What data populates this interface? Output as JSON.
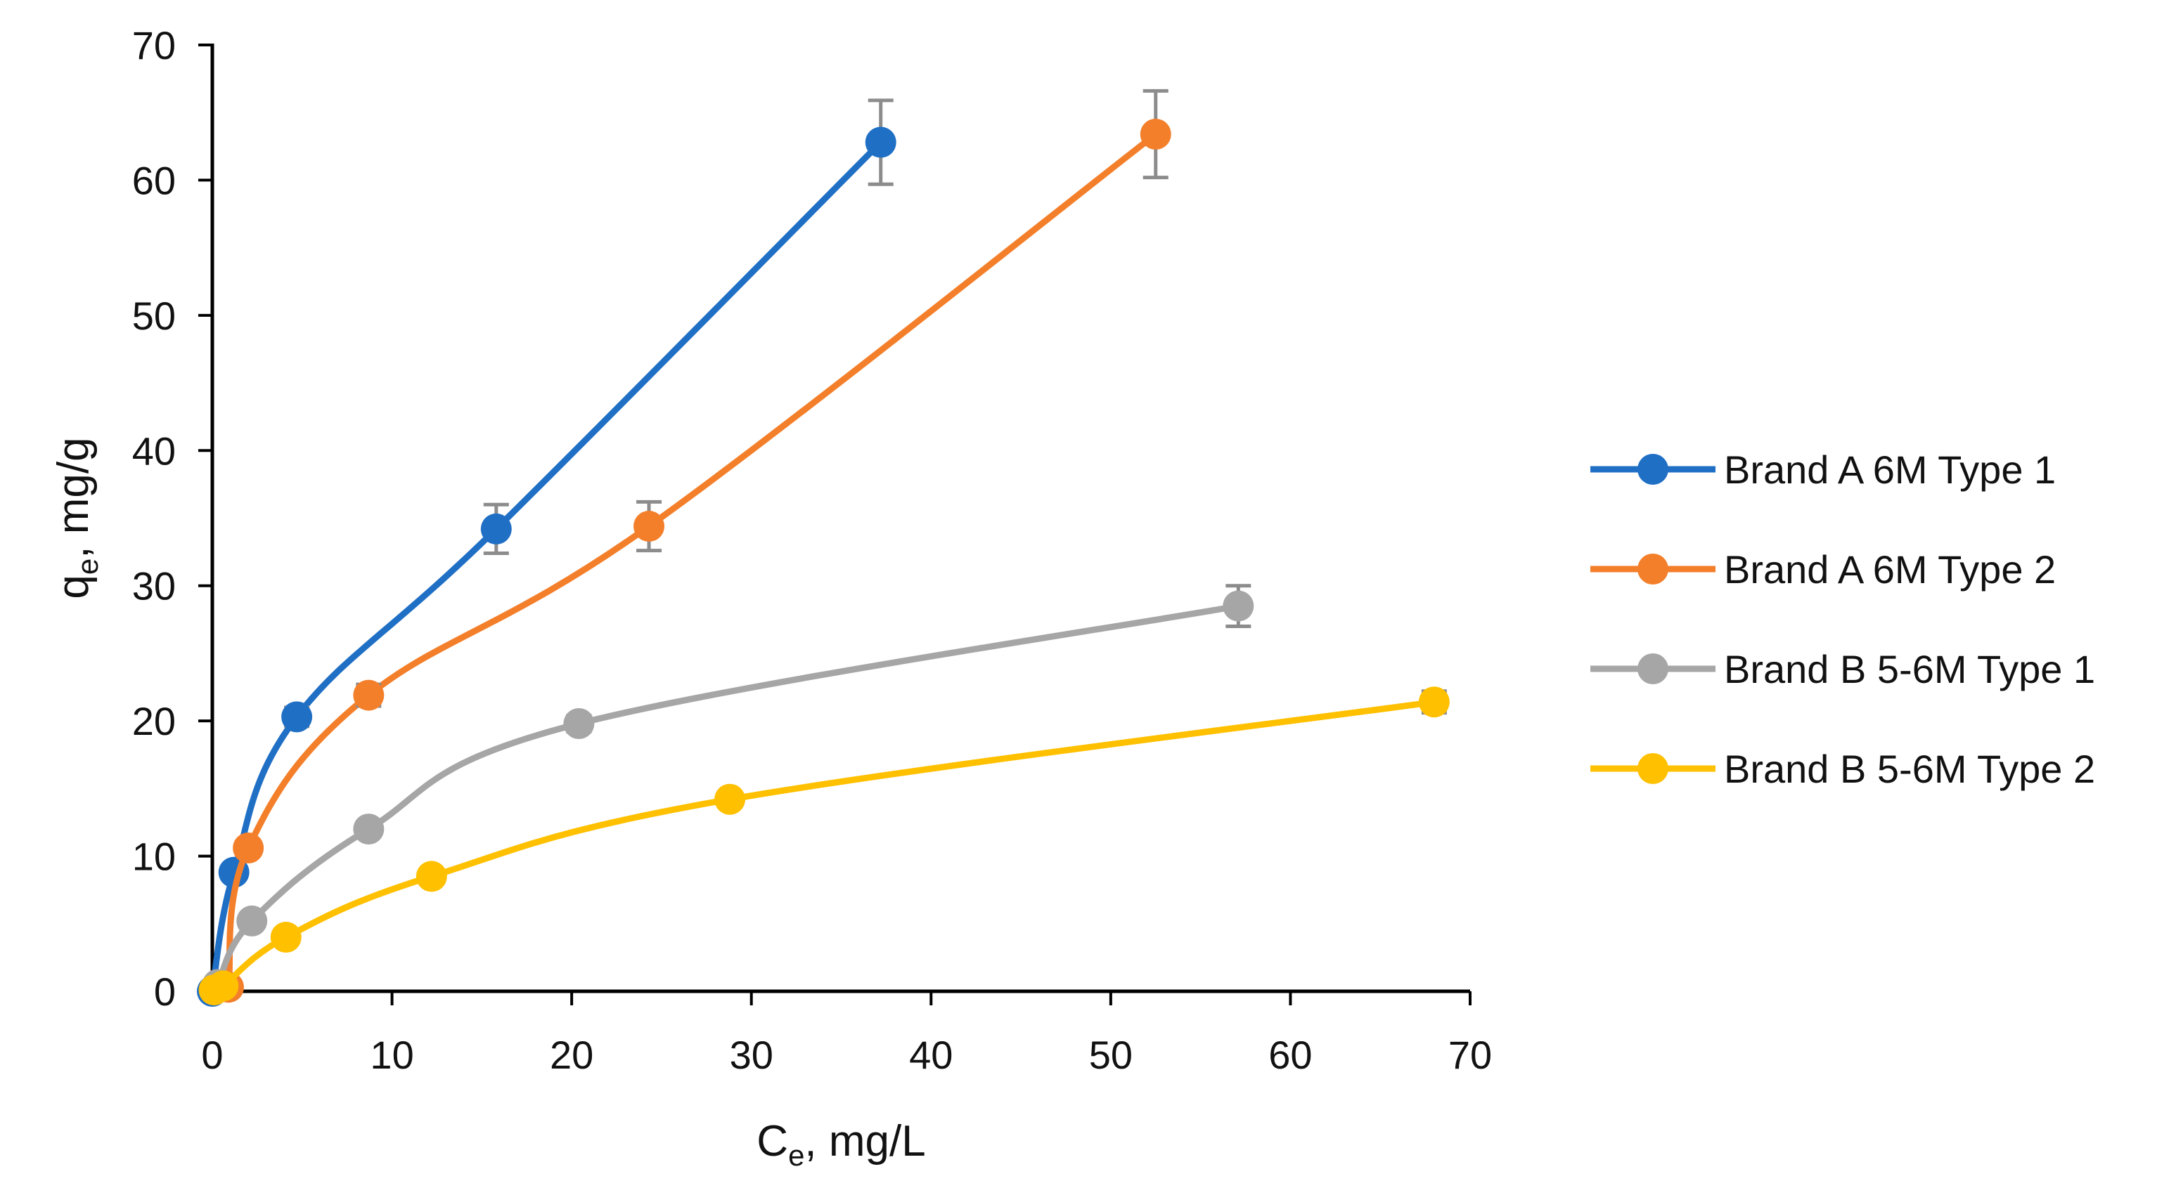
{
  "chart_data": {
    "type": "scatter",
    "title": "",
    "xlabel": {
      "main": "C",
      "sub": "e",
      "rest": ", mg/L"
    },
    "ylabel": {
      "main": "q",
      "sub": "e",
      "rest": ", mg/g"
    },
    "xlim": [
      0,
      70
    ],
    "ylim": [
      0,
      70
    ],
    "xticks": [
      0,
      10,
      20,
      30,
      40,
      50,
      60,
      70
    ],
    "yticks": [
      0,
      10,
      20,
      30,
      40,
      50,
      60,
      70
    ],
    "grid": false,
    "legend_position": "right",
    "series": [
      {
        "name": "Brand A 6M Type 1",
        "color": "#1f6fc5",
        "x": [
          0,
          1.2,
          4.7,
          15.8,
          37.2
        ],
        "y": [
          0,
          8.8,
          20.3,
          34.2,
          62.8
        ],
        "err": [
          0,
          0,
          0.7,
          1.8,
          3.1
        ]
      },
      {
        "name": "Brand A 6M Type 2",
        "color": "#f47f2a",
        "x": [
          0.9,
          2.0,
          8.7,
          24.3,
          52.5
        ],
        "y": [
          0.3,
          10.6,
          21.9,
          34.4,
          63.4
        ],
        "err": [
          0,
          0,
          0.8,
          1.8,
          3.2
        ]
      },
      {
        "name": "Brand B 5-6M Type 1",
        "color": "#a6a6a6",
        "x": [
          0.3,
          2.2,
          8.7,
          20.4,
          57.1
        ],
        "y": [
          0.5,
          5.2,
          12.0,
          19.8,
          28.5
        ],
        "err": [
          0,
          0,
          0,
          0.6,
          1.5
        ]
      },
      {
        "name": "Brand B 5-6M Type 2",
        "color": "#ffc000",
        "x": [
          0.1,
          0.6,
          4.1,
          12.2,
          28.8,
          68.0
        ],
        "y": [
          0.1,
          0.4,
          4.0,
          8.5,
          14.2,
          21.4
        ],
        "err": [
          0,
          0,
          0,
          0,
          0,
          0.8
        ]
      }
    ]
  }
}
